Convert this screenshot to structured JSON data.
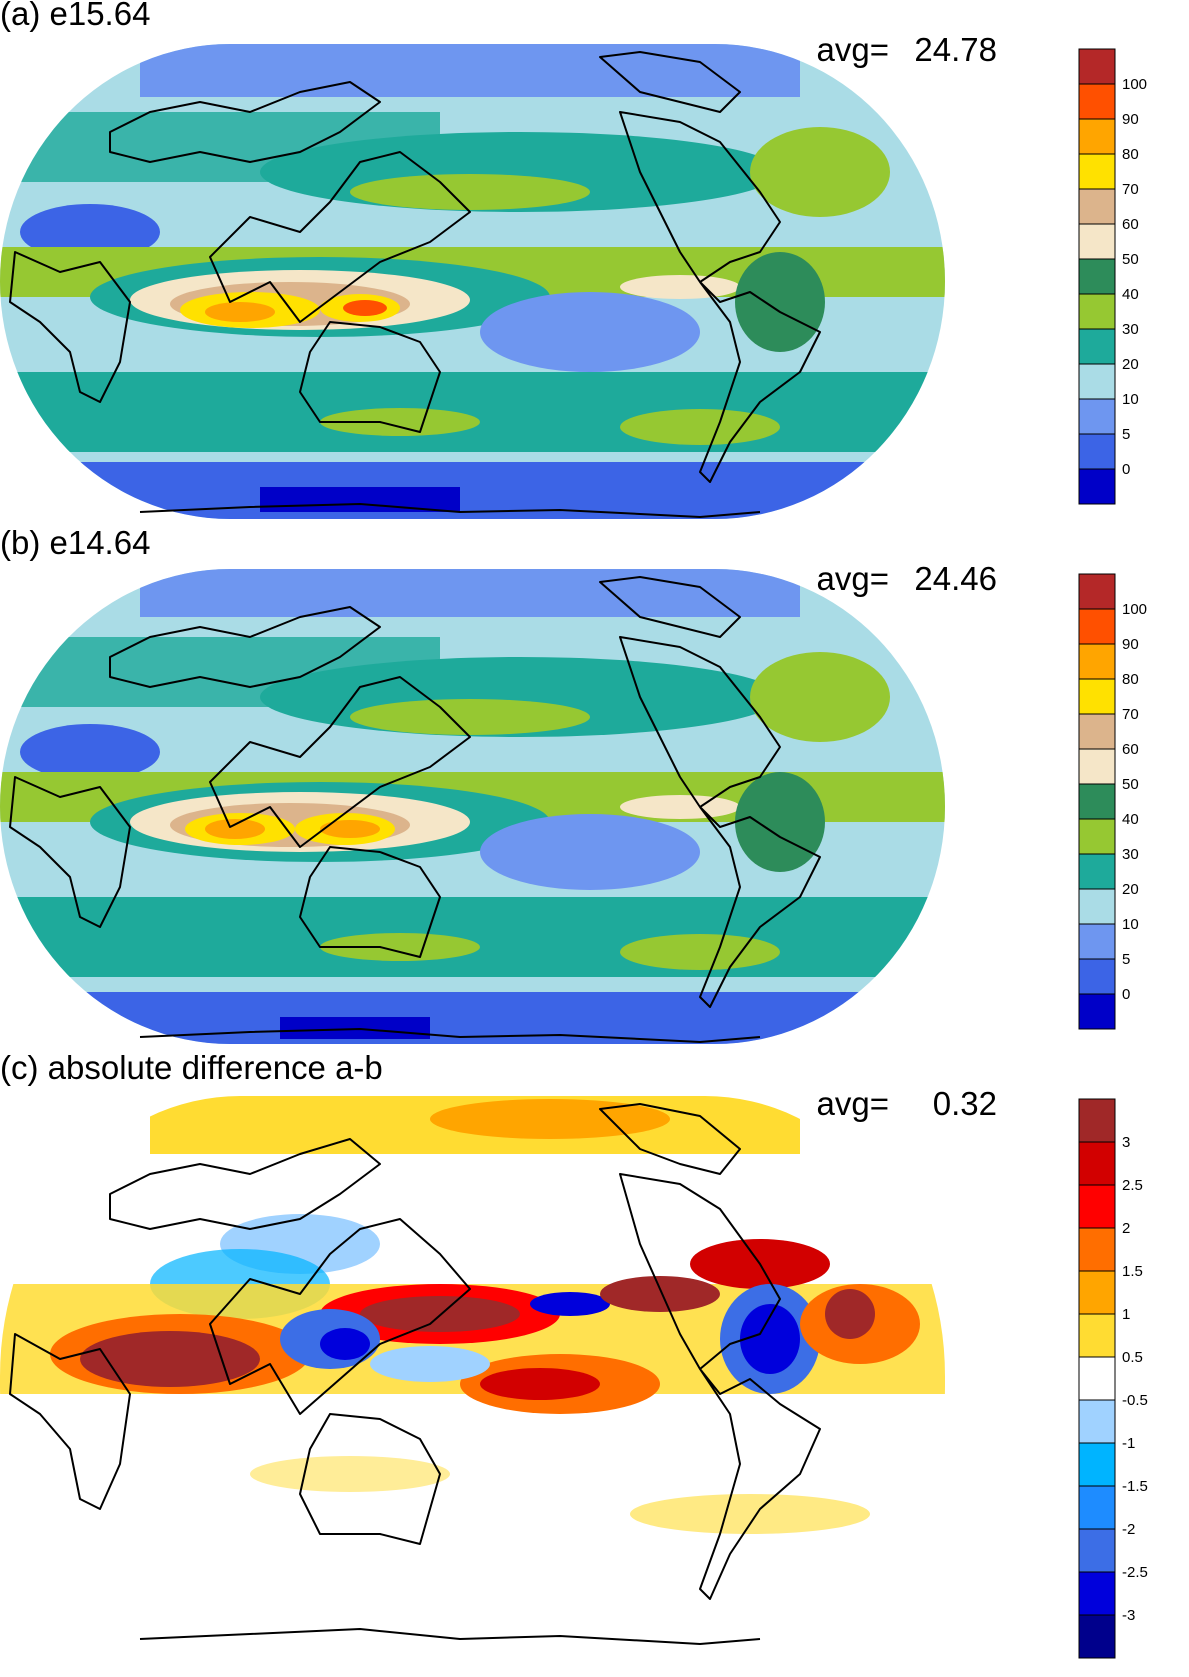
{
  "panels": [
    {
      "id": "a",
      "title": "(a) e15.64",
      "avg_label": "avg=",
      "avg_value": "24.78",
      "colorbar": {
        "colors": [
          "#0000c8",
          "#3c64e6",
          "#6e96f0",
          "#aadce6",
          "#1eaa9b",
          "#96c832",
          "#2d8c5a",
          "#f5e6c8",
          "#dcb48c",
          "#ffe100",
          "#ffa500",
          "#ff5000",
          "#b42828"
        ],
        "labels": [
          "0",
          "5",
          "10",
          "20",
          "30",
          "40",
          "50",
          "60",
          "70",
          "80",
          "90",
          "100"
        ]
      }
    },
    {
      "id": "b",
      "title": "(b) e14.64",
      "avg_label": "avg=",
      "avg_value": "24.46",
      "colorbar": {
        "colors": [
          "#0000c8",
          "#3c64e6",
          "#6e96f0",
          "#aadce6",
          "#1eaa9b",
          "#96c832",
          "#2d8c5a",
          "#f5e6c8",
          "#dcb48c",
          "#ffe100",
          "#ffa500",
          "#ff5000",
          "#b42828"
        ],
        "labels": [
          "0",
          "5",
          "10",
          "20",
          "30",
          "40",
          "50",
          "60",
          "70",
          "80",
          "90",
          "100"
        ]
      }
    },
    {
      "id": "c",
      "title": "(c) absolute difference a-b",
      "avg_label": "avg=",
      "avg_value": "0.32",
      "colorbar": {
        "colors": [
          "#00008c",
          "#0000dc",
          "#3c6ee6",
          "#1e8cff",
          "#00b4ff",
          "#a0d2ff",
          "#ffffff",
          "#ffdc32",
          "#ffa500",
          "#ff6e00",
          "#ff0000",
          "#d20000",
          "#a02828"
        ],
        "labels": [
          "-3",
          "-2.5",
          "-2",
          "-1.5",
          "-1",
          "-0.5",
          "0.5",
          "1",
          "1.5",
          "2",
          "2.5",
          "3"
        ]
      }
    }
  ]
}
